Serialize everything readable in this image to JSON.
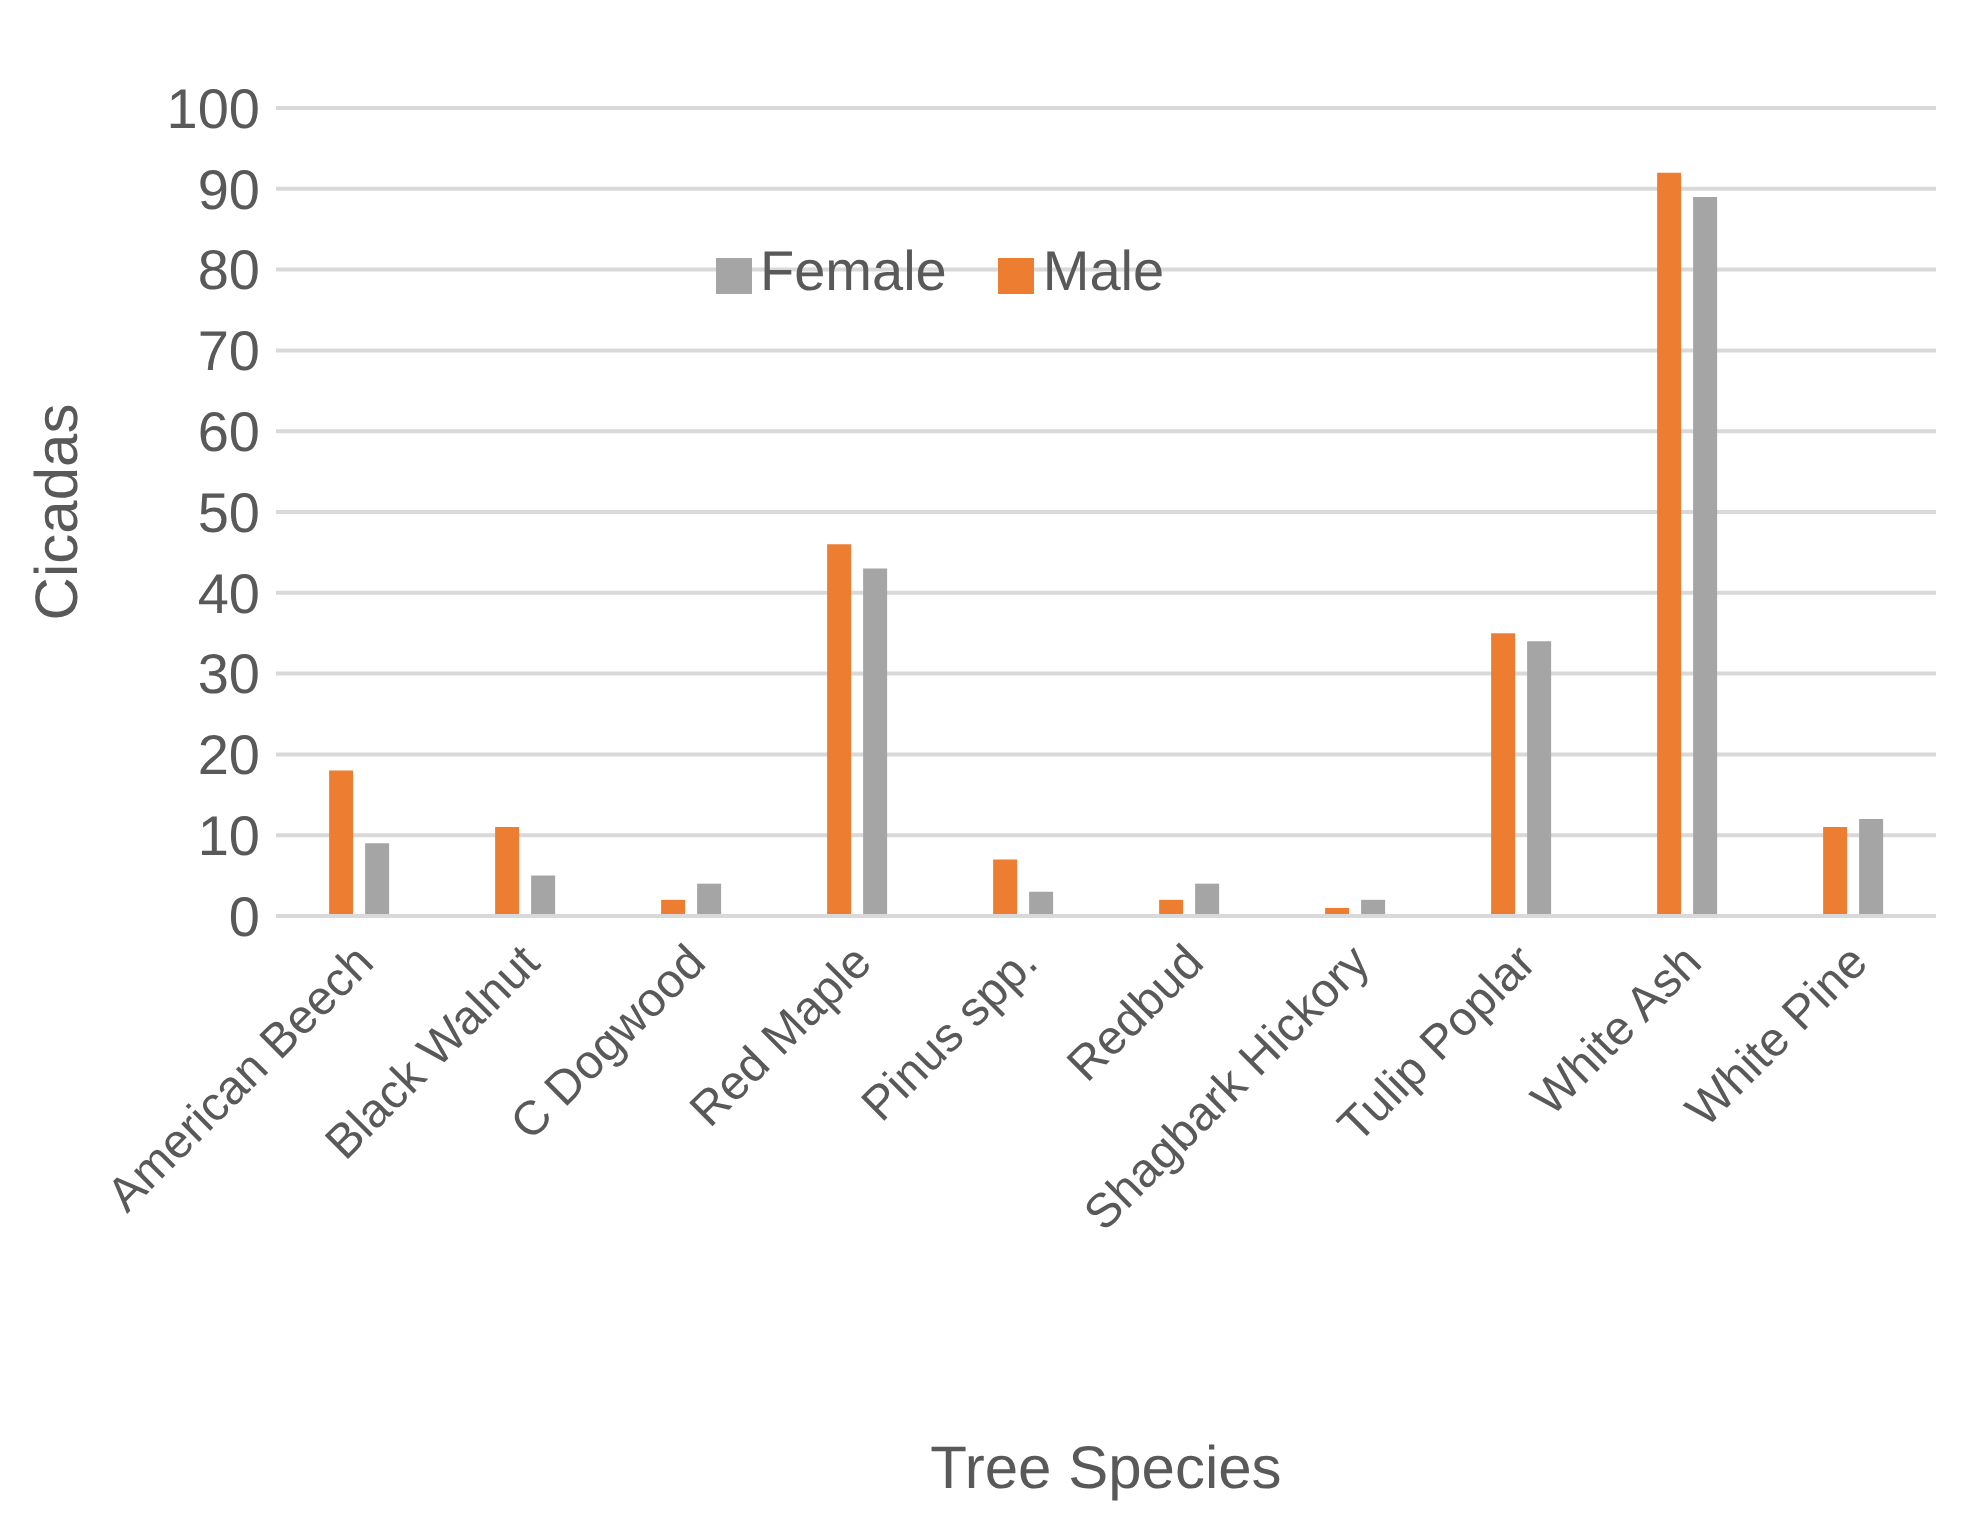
{
  "chart_data": {
    "type": "bar",
    "xlabel": "Tree Species",
    "ylabel": "Cicadas",
    "categories": [
      "American Beech",
      "Black Walnut",
      "C Dogwood",
      "Red Maple",
      "Pinus spp.",
      "Redbud",
      "Shagbark Hickory",
      "Tulip Poplar",
      "White Ash",
      "White Pine"
    ],
    "series": [
      {
        "name": "Male",
        "color": "#ed7d31",
        "values": [
          18,
          11,
          2,
          46,
          7,
          2,
          1,
          35,
          92,
          11
        ]
      },
      {
        "name": "Female",
        "color": "#a5a5a5",
        "values": [
          9,
          5,
          4,
          43,
          3,
          4,
          2,
          34,
          89,
          12
        ]
      }
    ],
    "ylim": [
      0,
      100
    ],
    "yticks": [
      0,
      10,
      20,
      30,
      40,
      50,
      60,
      70,
      80,
      90,
      100
    ],
    "grid": "y",
    "legend": "top"
  }
}
